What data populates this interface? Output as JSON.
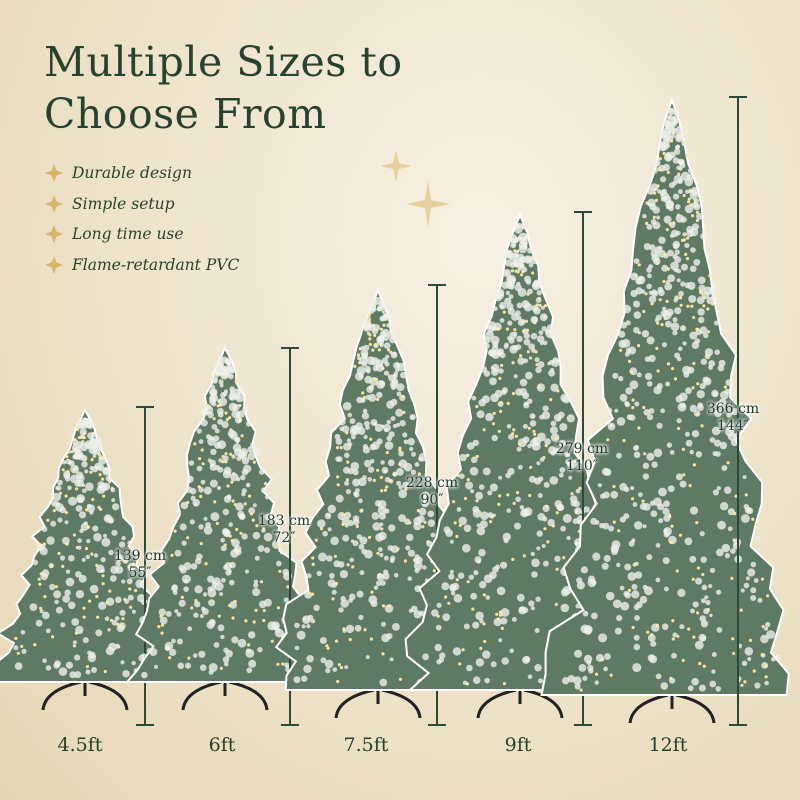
{
  "title_lines": [
    "Multiple Sizes to",
    "Choose From"
  ],
  "features": [
    {
      "icon": "four-point-star-icon",
      "label": "Durable design"
    },
    {
      "icon": "four-point-star-icon",
      "label": "Simple setup"
    },
    {
      "icon": "four-point-star-icon",
      "label": "Long time use"
    },
    {
      "icon": "four-point-star-icon",
      "label": "Flame-retardant PVC"
    }
  ],
  "colors": {
    "text": "#27432f",
    "accent_star": "#d9b46a",
    "measure_line": "#2c4a37",
    "tree_green": "#5f7a63",
    "frost": "#eef0ea"
  },
  "trees": [
    {
      "size": "4.5ft",
      "cm": "139 cm",
      "inches": "55″"
    },
    {
      "size": "6ft",
      "cm": "183 cm",
      "inches": "72″"
    },
    {
      "size": "7.5ft",
      "cm": "228 cm",
      "inches": "90″"
    },
    {
      "size": "9ft",
      "cm": "279 cm",
      "inches": "110″"
    },
    {
      "size": "12ft",
      "cm": "366 cm",
      "inches": "144″"
    }
  ]
}
